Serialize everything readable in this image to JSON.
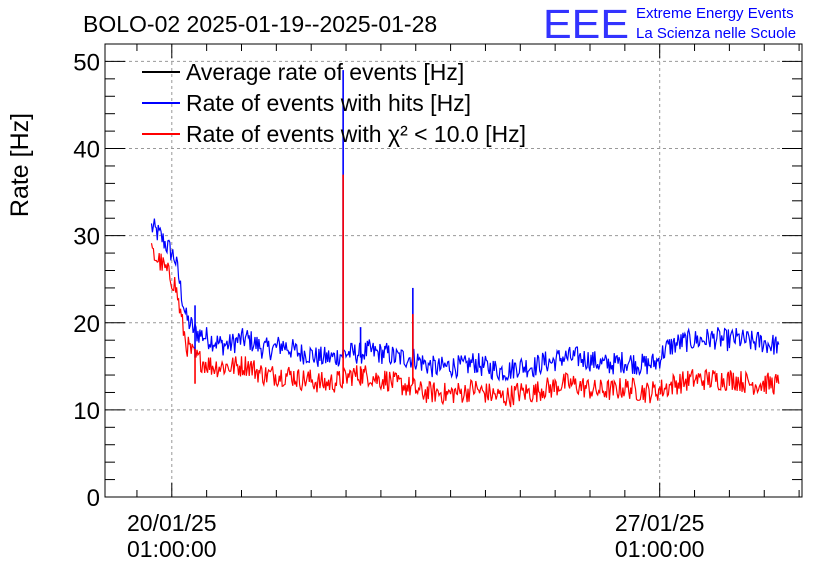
{
  "chart_data": {
    "type": "line",
    "title": "BOLO-02 2025-01-19--2025-01-28",
    "ylabel": "Rate [Hz]",
    "xlabel": "",
    "ylim": [
      0,
      52
    ],
    "yticks": [
      0,
      10,
      20,
      30,
      40,
      50
    ],
    "xlim": [
      "2025-01-19 02:00",
      "2025-01-29 02:00"
    ],
    "xticks": [
      {
        "date": "2025-01-20 01:00",
        "line1": "20/01/25",
        "line2": "01:00:00"
      },
      {
        "date": "2025-01-27 01:00",
        "line1": "27/01/25",
        "line2": "01:00:00"
      }
    ],
    "grid": true,
    "legend_position": "top-left",
    "series": [
      {
        "name": "Average rate of events [Hz]",
        "color": "#000000",
        "x": [],
        "values": []
      },
      {
        "name": "Rate of events with hits [Hz]",
        "color": "#0000ff",
        "x": [
          "2025-01-19 18:00",
          "2025-01-19 21:00",
          "2025-01-20 00:00",
          "2025-01-20 02:00",
          "2025-01-20 03:00",
          "2025-01-20 04:00",
          "2025-01-20 06:00",
          "2025-01-20 09:00",
          "2025-01-20 12:00",
          "2025-01-20 15:00",
          "2025-01-20 18:00",
          "2025-01-20 21:00",
          "2025-01-21 00:00",
          "2025-01-21 03:00",
          "2025-01-21 06:00",
          "2025-01-21 09:00",
          "2025-01-21 12:00",
          "2025-01-21 15:00",
          "2025-01-21 18:00",
          "2025-01-21 21:00",
          "2025-01-22 00:00",
          "2025-01-22 03:00",
          "2025-01-22 06:00",
          "2025-01-22 09:00",
          "2025-01-22 12:00",
          "2025-01-22 15:00",
          "2025-01-22 18:00",
          "2025-01-22 21:00",
          "2025-01-23 00:00",
          "2025-01-23 03:00",
          "2025-01-23 06:00",
          "2025-01-23 09:00",
          "2025-01-23 12:00",
          "2025-01-23 15:00",
          "2025-01-23 18:00",
          "2025-01-23 21:00",
          "2025-01-24 00:00",
          "2025-01-24 03:00",
          "2025-01-24 06:00",
          "2025-01-24 09:00",
          "2025-01-24 12:00",
          "2025-01-24 15:00",
          "2025-01-24 18:00",
          "2025-01-24 21:00",
          "2025-01-25 00:00",
          "2025-01-25 03:00",
          "2025-01-25 06:00",
          "2025-01-25 09:00",
          "2025-01-25 12:00",
          "2025-01-25 15:00",
          "2025-01-25 18:00",
          "2025-01-25 21:00",
          "2025-01-26 00:00",
          "2025-01-26 03:00",
          "2025-01-26 06:00",
          "2025-01-26 09:00",
          "2025-01-26 12:00",
          "2025-01-26 15:00",
          "2025-01-26 18:00",
          "2025-01-26 21:00",
          "2025-01-27 00:00",
          "2025-01-27 03:00",
          "2025-01-27 06:00",
          "2025-01-27 09:00",
          "2025-01-27 12:00",
          "2025-01-27 15:00",
          "2025-01-27 18:00",
          "2025-01-27 21:00",
          "2025-01-28 00:00",
          "2025-01-28 03:00",
          "2025-01-28 06:00",
          "2025-01-28 09:00",
          "2025-01-28 12:00",
          "2025-01-28 15:00",
          "2025-01-28 18:00"
        ],
        "values": [
          31,
          30,
          28.5,
          27.5,
          26,
          24,
          20.5,
          19,
          18.5,
          18,
          17.5,
          17.5,
          18,
          18.2,
          17.5,
          17,
          17,
          17.5,
          17,
          16.5,
          16.5,
          16,
          16,
          16,
          16.5,
          16.5,
          16.5,
          16.8,
          16.5,
          16.5,
          16,
          16,
          16,
          15.5,
          15,
          14.8,
          15,
          15,
          15,
          15.5,
          15,
          14.8,
          14.5,
          14.5,
          15,
          15,
          15,
          15.5,
          15.5,
          16,
          16,
          16,
          15.8,
          15.5,
          15.2,
          15.3,
          15.5,
          15.5,
          15.2,
          15.2,
          15.5,
          17,
          17.5,
          17.8,
          18,
          18,
          18.2,
          18.2,
          18,
          18.2,
          18,
          17.8,
          17.8,
          17.5,
          17.5
        ]
      },
      {
        "name": "Rate of events with χ² < 10.0 [Hz]",
        "color": "#ff0000",
        "x": [
          "2025-01-19 18:00",
          "2025-01-19 21:00",
          "2025-01-20 00:00",
          "2025-01-20 02:00",
          "2025-01-20 03:00",
          "2025-01-20 04:00",
          "2025-01-20 06:00",
          "2025-01-20 09:00",
          "2025-01-20 12:00",
          "2025-01-20 15:00",
          "2025-01-20 18:00",
          "2025-01-20 21:00",
          "2025-01-21 00:00",
          "2025-01-21 03:00",
          "2025-01-21 06:00",
          "2025-01-21 09:00",
          "2025-01-21 12:00",
          "2025-01-21 15:00",
          "2025-01-21 18:00",
          "2025-01-21 21:00",
          "2025-01-22 00:00",
          "2025-01-22 03:00",
          "2025-01-22 06:00",
          "2025-01-22 09:00",
          "2025-01-22 12:00",
          "2025-01-22 15:00",
          "2025-01-22 18:00",
          "2025-01-22 21:00",
          "2025-01-23 00:00",
          "2025-01-23 03:00",
          "2025-01-23 06:00",
          "2025-01-23 09:00",
          "2025-01-23 12:00",
          "2025-01-23 15:00",
          "2025-01-23 18:00",
          "2025-01-23 21:00",
          "2025-01-24 00:00",
          "2025-01-24 03:00",
          "2025-01-24 06:00",
          "2025-01-24 09:00",
          "2025-01-24 12:00",
          "2025-01-24 15:00",
          "2025-01-24 18:00",
          "2025-01-24 21:00",
          "2025-01-25 00:00",
          "2025-01-25 03:00",
          "2025-01-25 06:00",
          "2025-01-25 09:00",
          "2025-01-25 12:00",
          "2025-01-25 15:00",
          "2025-01-25 18:00",
          "2025-01-25 21:00",
          "2025-01-26 00:00",
          "2025-01-26 03:00",
          "2025-01-26 06:00",
          "2025-01-26 09:00",
          "2025-01-26 12:00",
          "2025-01-26 15:00",
          "2025-01-26 18:00",
          "2025-01-26 21:00",
          "2025-01-27 00:00",
          "2025-01-27 03:00",
          "2025-01-27 06:00",
          "2025-01-27 09:00",
          "2025-01-27 12:00",
          "2025-01-27 15:00",
          "2025-01-27 18:00",
          "2025-01-27 21:00",
          "2025-01-28 00:00",
          "2025-01-28 03:00",
          "2025-01-28 06:00",
          "2025-01-28 09:00",
          "2025-01-28 12:00",
          "2025-01-28 15:00",
          "2025-01-28 18:00"
        ],
        "values": [
          28,
          27,
          25.5,
          24.5,
          23,
          21,
          17.5,
          16,
          15.5,
          15,
          15,
          15,
          15,
          15.2,
          14.5,
          14,
          14,
          14,
          14,
          13.5,
          13.5,
          13.2,
          13,
          13.2,
          13.5,
          14,
          14,
          14,
          13.5,
          13.5,
          13,
          12.8,
          12.5,
          12,
          12,
          12,
          11.8,
          12,
          12,
          12.5,
          12,
          11.8,
          11.5,
          11.5,
          12,
          12,
          12,
          12.5,
          12.5,
          13,
          13,
          12.8,
          12.5,
          12.2,
          12.3,
          12.2,
          12.5,
          12.5,
          12.2,
          12,
          12.2,
          12.5,
          13,
          13.2,
          13.5,
          13.5,
          13.5,
          13.5,
          13.5,
          13.5,
          13.2,
          13,
          13,
          13,
          13
        ]
      }
    ],
    "spikes": [
      {
        "x": "2025-01-20 09:00",
        "values": [
          22,
          17
        ]
      },
      {
        "x": "2025-01-22 12:00",
        "values": [
          49,
          37
        ]
      },
      {
        "x": "2025-01-22 18:00",
        "values": [
          19.5,
          15
        ]
      },
      {
        "x": "2025-01-23 12:00",
        "values": [
          24,
          21
        ]
      }
    ]
  },
  "logo": {
    "mark": "EEE",
    "line1": "Extreme Energy Events",
    "line2": "La Scienza nelle Scuole",
    "color": "#0000ff"
  }
}
